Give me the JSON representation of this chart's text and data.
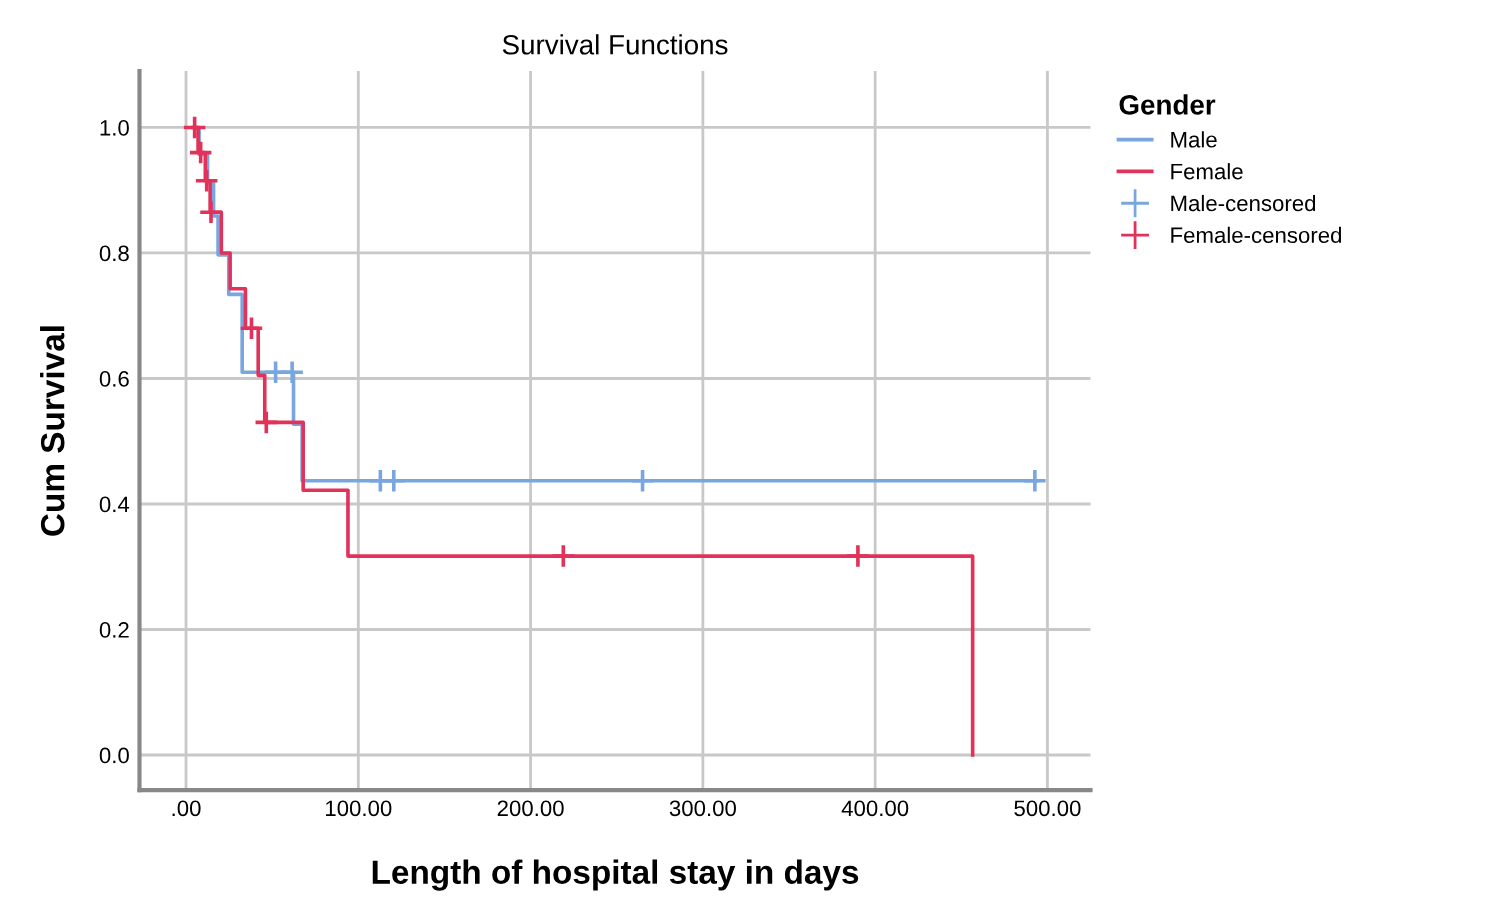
{
  "chart_data": {
    "type": "step",
    "title": "Survival Functions",
    "xlabel": "Length of hospital stay in days",
    "ylabel": "Cum Survival",
    "legend_title": "Gender",
    "series": [
      {
        "name": "Male",
        "color": "#7aa6e0",
        "x": [
          5,
          7.6,
          12.5,
          16,
          18.6,
          24.8,
          32.6,
          62.4,
          67.4,
          494
        ],
        "values": [
          1.0,
          0.957,
          0.912,
          0.859,
          0.797,
          0.734,
          0.61,
          0.527,
          0.437,
          0.437
        ]
      },
      {
        "name": "Female",
        "color": "#e0325a",
        "x": [
          4,
          7,
          11.2,
          14,
          20.5,
          25.6,
          34.5,
          41.9,
          45.7,
          68,
          94,
          456.6
        ],
        "values": [
          1.0,
          0.96,
          0.915,
          0.865,
          0.8,
          0.743,
          0.68,
          0.605,
          0.53,
          0.422,
          0.317,
          0.0
        ]
      },
      {
        "name": "Male-censored",
        "type": "scatter",
        "marker": "cross",
        "color": "#7aa6e0",
        "x": [
          52,
          61.6,
          112.8,
          120.6,
          265,
          492.7
        ],
        "values": [
          0.61,
          0.61,
          0.437,
          0.437,
          0.437,
          0.437
        ]
      },
      {
        "name": "Female-censored",
        "type": "scatter",
        "marker": "cross",
        "color": "#e0325a",
        "x": [
          5,
          8.5,
          12,
          14.5,
          38,
          46.6,
          219,
          390
        ],
        "values": [
          1.0,
          0.96,
          0.915,
          0.865,
          0.68,
          0.53,
          0.317,
          0.317
        ]
      }
    ],
    "xlim": [
      -27,
      525
    ],
    "ylim": [
      -0.056,
      1.09
    ],
    "xticks": [
      {
        "value": 0,
        "label": ".00"
      },
      {
        "value": 100,
        "label": "100.00"
      },
      {
        "value": 200,
        "label": "200.00"
      },
      {
        "value": 300,
        "label": "300.00"
      },
      {
        "value": 400,
        "label": "400.00"
      },
      {
        "value": 500,
        "label": "500.00"
      }
    ],
    "yticks": [
      {
        "value": 0,
        "label": "0.0"
      },
      {
        "value": 0.2,
        "label": "0.2"
      },
      {
        "value": 0.4,
        "label": "0.4"
      },
      {
        "value": 0.6,
        "label": "0.6"
      },
      {
        "value": 0.8,
        "label": "0.8"
      },
      {
        "value": 1.0,
        "label": "1.0"
      }
    ],
    "grid": true,
    "legend": "right"
  }
}
